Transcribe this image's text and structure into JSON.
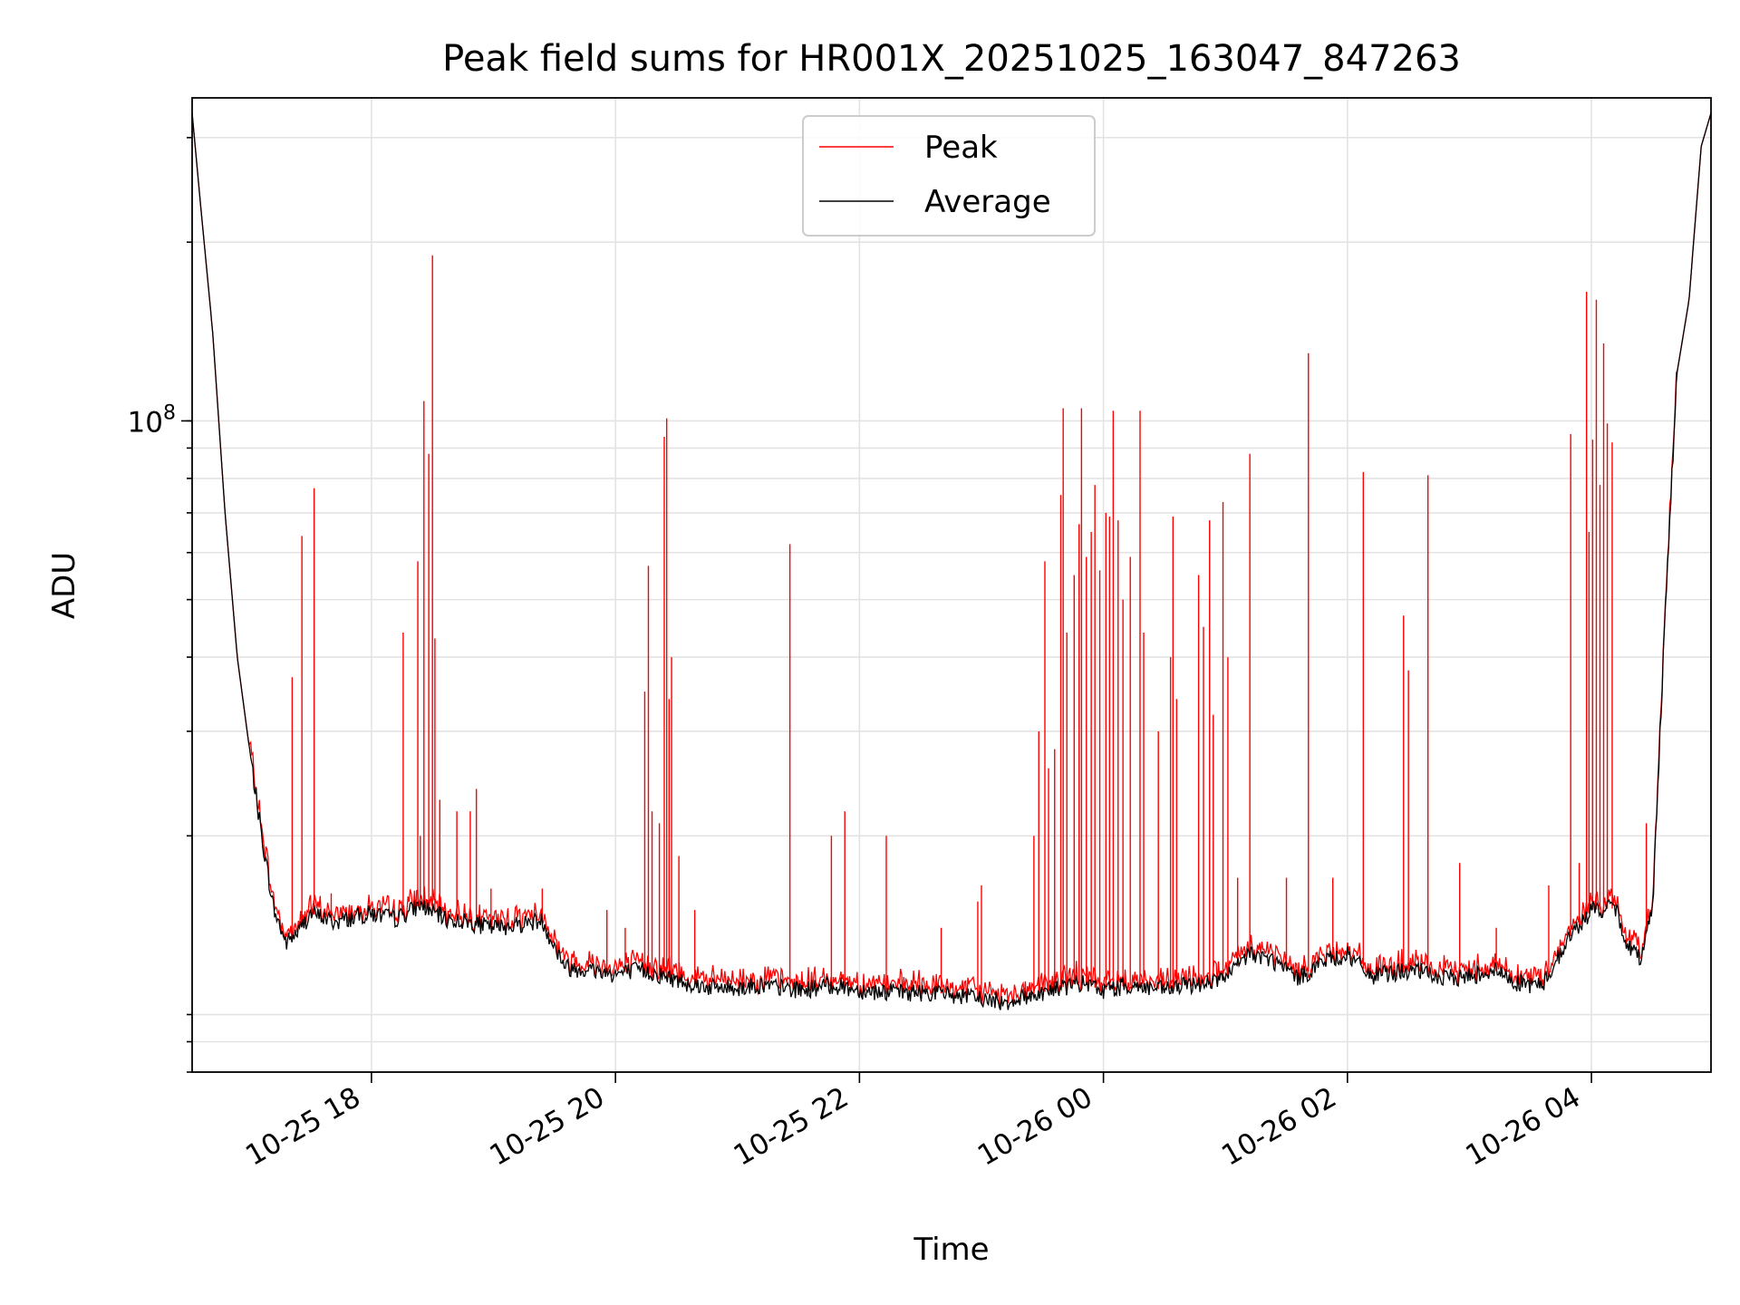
{
  "chart_data": {
    "type": "line",
    "title": "Peak field sums for HR001X_20251025_163047_847263",
    "xlabel": "Time",
    "ylabel": "ADU",
    "yscale": "log",
    "ylim": [
      8000000,
      350000000
    ],
    "xlim_hours": [
      16.53,
      4.98
    ],
    "x_ticks": [
      {
        "hour": 18,
        "label": "10-25 18"
      },
      {
        "hour": 20,
        "label": "10-25 20"
      },
      {
        "hour": 22,
        "label": "10-25 22"
      },
      {
        "hour": 24,
        "label": "10-26 00"
      },
      {
        "hour": 26,
        "label": "10-26 02"
      },
      {
        "hour": 28,
        "label": "10-26 04"
      }
    ],
    "y_ticks": [
      {
        "value": 100000000,
        "label_base": "10",
        "label_exp": "8"
      }
    ],
    "grid": true,
    "legend": {
      "position": "top-center",
      "entries": [
        {
          "name": "Peak",
          "color": "#ff0000"
        },
        {
          "name": "Average",
          "color": "#000000"
        }
      ]
    },
    "series": [
      {
        "name": "Average",
        "color": "#000000",
        "x_hours": [
          16.53,
          16.6,
          16.7,
          16.8,
          16.9,
          17.0,
          17.1,
          17.2,
          17.3,
          17.4,
          17.5,
          17.6,
          17.7,
          17.8,
          18.0,
          18.2,
          18.4,
          18.6,
          18.8,
          19.0,
          19.2,
          19.4,
          19.5,
          19.6,
          19.8,
          20.0,
          20.2,
          20.4,
          20.6,
          20.8,
          21.0,
          21.2,
          21.5,
          21.8,
          22.0,
          22.3,
          22.6,
          22.9,
          23.2,
          23.5,
          23.8,
          24.0,
          24.2,
          24.5,
          24.8,
          25.0,
          25.2,
          25.4,
          25.6,
          25.8,
          26.0,
          26.2,
          26.4,
          26.6,
          26.8,
          27.0,
          27.2,
          27.4,
          27.6,
          27.8,
          28.0,
          28.2,
          28.3,
          28.4,
          28.5,
          28.6,
          28.7,
          28.8,
          28.9,
          28.98,
          29.0
        ],
        "y_mil": [
          330,
          230,
          140,
          70,
          40,
          28,
          20,
          15,
          13.2,
          13.8,
          14.8,
          14.6,
          14.3,
          14.5,
          14.8,
          14.5,
          15.3,
          14.5,
          14.3,
          14,
          14.2,
          14.4,
          13,
          12,
          11.9,
          11.7,
          11.9,
          11.6,
          11.3,
          11.1,
          11.1,
          11.2,
          11.0,
          11.2,
          11.0,
          10.9,
          10.9,
          10.7,
          10.5,
          10.9,
          11.3,
          11.0,
          11.2,
          11.0,
          11.3,
          11.5,
          12.7,
          12.3,
          11.5,
          12.3,
          12.6,
          11.6,
          11.8,
          11.8,
          11.5,
          11.6,
          11.9,
          11.3,
          11.2,
          13.3,
          15.0,
          15.1,
          13,
          12.5,
          15,
          45,
          120,
          160,
          290,
          330,
          335
        ]
      },
      {
        "name": "Peak",
        "color": "#ff0000",
        "spikes": [
          {
            "hour": 17.35,
            "value_mil": 37
          },
          {
            "hour": 17.43,
            "value_mil": 64
          },
          {
            "hour": 17.53,
            "value_mil": 77
          },
          {
            "hour": 17.67,
            "value_mil": 16
          },
          {
            "hour": 17.9,
            "value_mil": 15.2
          },
          {
            "hour": 18.26,
            "value_mil": 44
          },
          {
            "hour": 18.38,
            "value_mil": 58
          },
          {
            "hour": 18.4,
            "value_mil": 20
          },
          {
            "hour": 18.43,
            "value_mil": 108
          },
          {
            "hour": 18.47,
            "value_mil": 88
          },
          {
            "hour": 18.5,
            "value_mil": 190
          },
          {
            "hour": 18.52,
            "value_mil": 43
          },
          {
            "hour": 18.56,
            "value_mil": 23
          },
          {
            "hour": 18.7,
            "value_mil": 22
          },
          {
            "hour": 18.81,
            "value_mil": 22
          },
          {
            "hour": 18.86,
            "value_mil": 24
          },
          {
            "hour": 18.98,
            "value_mil": 16.3
          },
          {
            "hour": 19.4,
            "value_mil": 16.3
          },
          {
            "hour": 19.93,
            "value_mil": 15
          },
          {
            "hour": 20.08,
            "value_mil": 14
          },
          {
            "hour": 20.24,
            "value_mil": 35
          },
          {
            "hour": 20.27,
            "value_mil": 57
          },
          {
            "hour": 20.3,
            "value_mil": 22
          },
          {
            "hour": 20.36,
            "value_mil": 21
          },
          {
            "hour": 20.4,
            "value_mil": 94
          },
          {
            "hour": 20.42,
            "value_mil": 101
          },
          {
            "hour": 20.44,
            "value_mil": 34
          },
          {
            "hour": 20.46,
            "value_mil": 40
          },
          {
            "hour": 20.52,
            "value_mil": 18.5
          },
          {
            "hour": 20.65,
            "value_mil": 15
          },
          {
            "hour": 21.43,
            "value_mil": 62
          },
          {
            "hour": 21.77,
            "value_mil": 20
          },
          {
            "hour": 21.88,
            "value_mil": 22
          },
          {
            "hour": 22.22,
            "value_mil": 20
          },
          {
            "hour": 22.67,
            "value_mil": 14
          },
          {
            "hour": 22.97,
            "value_mil": 15.5
          },
          {
            "hour": 23.0,
            "value_mil": 16.5
          },
          {
            "hour": 23.43,
            "value_mil": 20
          },
          {
            "hour": 23.47,
            "value_mil": 30
          },
          {
            "hour": 23.52,
            "value_mil": 58
          },
          {
            "hour": 23.55,
            "value_mil": 26
          },
          {
            "hour": 23.6,
            "value_mil": 28
          },
          {
            "hour": 23.65,
            "value_mil": 75
          },
          {
            "hour": 23.67,
            "value_mil": 105
          },
          {
            "hour": 23.7,
            "value_mil": 44
          },
          {
            "hour": 23.76,
            "value_mil": 55
          },
          {
            "hour": 23.8,
            "value_mil": 67
          },
          {
            "hour": 23.82,
            "value_mil": 105
          },
          {
            "hour": 23.86,
            "value_mil": 59
          },
          {
            "hour": 23.9,
            "value_mil": 65
          },
          {
            "hour": 23.93,
            "value_mil": 78
          },
          {
            "hour": 23.97,
            "value_mil": 56
          },
          {
            "hour": 24.02,
            "value_mil": 70
          },
          {
            "hour": 24.05,
            "value_mil": 69
          },
          {
            "hour": 24.08,
            "value_mil": 104
          },
          {
            "hour": 24.12,
            "value_mil": 68
          },
          {
            "hour": 24.16,
            "value_mil": 50
          },
          {
            "hour": 24.22,
            "value_mil": 59
          },
          {
            "hour": 24.3,
            "value_mil": 104
          },
          {
            "hour": 24.33,
            "value_mil": 44
          },
          {
            "hour": 24.45,
            "value_mil": 30
          },
          {
            "hour": 24.55,
            "value_mil": 40
          },
          {
            "hour": 24.57,
            "value_mil": 69
          },
          {
            "hour": 24.6,
            "value_mil": 34
          },
          {
            "hour": 24.78,
            "value_mil": 55
          },
          {
            "hour": 24.82,
            "value_mil": 45
          },
          {
            "hour": 24.87,
            "value_mil": 68
          },
          {
            "hour": 24.9,
            "value_mil": 32
          },
          {
            "hour": 24.98,
            "value_mil": 73
          },
          {
            "hour": 25.02,
            "value_mil": 40
          },
          {
            "hour": 25.1,
            "value_mil": 17
          },
          {
            "hour": 25.2,
            "value_mil": 88
          },
          {
            "hour": 25.5,
            "value_mil": 17
          },
          {
            "hour": 25.68,
            "value_mil": 130
          },
          {
            "hour": 25.88,
            "value_mil": 17
          },
          {
            "hour": 26.13,
            "value_mil": 82
          },
          {
            "hour": 26.46,
            "value_mil": 47
          },
          {
            "hour": 26.5,
            "value_mil": 38
          },
          {
            "hour": 26.66,
            "value_mil": 81
          },
          {
            "hour": 26.92,
            "value_mil": 18
          },
          {
            "hour": 27.22,
            "value_mil": 14
          },
          {
            "hour": 27.65,
            "value_mil": 16.5
          },
          {
            "hour": 27.83,
            "value_mil": 95
          },
          {
            "hour": 27.9,
            "value_mil": 18
          },
          {
            "hour": 27.96,
            "value_mil": 165
          },
          {
            "hour": 27.98,
            "value_mil": 65
          },
          {
            "hour": 28.01,
            "value_mil": 93
          },
          {
            "hour": 28.04,
            "value_mil": 160
          },
          {
            "hour": 28.07,
            "value_mil": 78
          },
          {
            "hour": 28.1,
            "value_mil": 135
          },
          {
            "hour": 28.13,
            "value_mil": 99
          },
          {
            "hour": 28.17,
            "value_mil": 92
          },
          {
            "hour": 28.45,
            "value_mil": 21
          }
        ]
      }
    ]
  }
}
